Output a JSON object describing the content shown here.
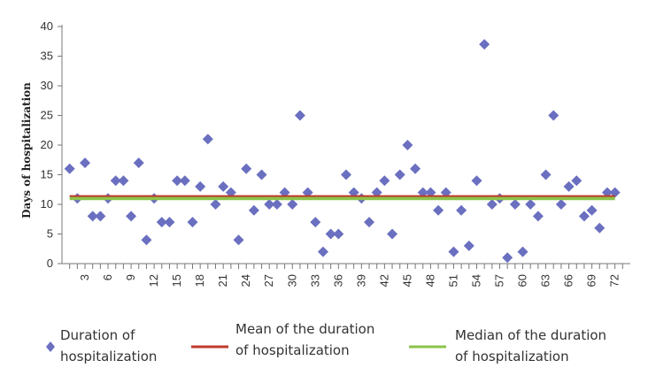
{
  "chart_data": {
    "type": "scatter",
    "title": "",
    "xlabel": "",
    "ylabel": "Days of hospitalization",
    "xlim": [
      0,
      74
    ],
    "ylim": [
      0,
      40
    ],
    "yticks": [
      0,
      5,
      10,
      15,
      20,
      25,
      30,
      35,
      40
    ],
    "xtick_labels": [
      3,
      6,
      9,
      12,
      15,
      18,
      21,
      24,
      27,
      30,
      33,
      36,
      39,
      42,
      45,
      48,
      51,
      54,
      57,
      60,
      63,
      66,
      69,
      72
    ],
    "grid": false,
    "legend_position": "bottom",
    "series": [
      {
        "name": "Duration of hospitalization",
        "marker": "diamond",
        "color": "#6a6fc0",
        "x": [
          1,
          2,
          3,
          4,
          5,
          6,
          7,
          8,
          9,
          10,
          11,
          12,
          13,
          14,
          15,
          16,
          17,
          18,
          19,
          20,
          21,
          22,
          23,
          24,
          25,
          26,
          27,
          28,
          29,
          30,
          31,
          32,
          33,
          34,
          35,
          36,
          37,
          38,
          39,
          40,
          41,
          42,
          43,
          44,
          45,
          46,
          47,
          48,
          49,
          50,
          51,
          52,
          53,
          54,
          55,
          56,
          57,
          58,
          59,
          60,
          61,
          62,
          63,
          64,
          65,
          66,
          67,
          68,
          69,
          70,
          71,
          72
        ],
        "y": [
          16,
          11,
          17,
          8,
          8,
          11,
          14,
          14,
          8,
          17,
          4,
          11,
          7,
          7,
          14,
          14,
          7,
          13,
          21,
          10,
          13,
          12,
          4,
          16,
          9,
          15,
          10,
          10,
          12,
          10,
          25,
          12,
          7,
          2,
          5,
          5,
          15,
          12,
          11,
          7,
          12,
          14,
          5,
          15,
          20,
          16,
          12,
          12,
          9,
          12,
          2,
          9,
          3,
          14,
          37,
          10,
          11,
          1,
          10,
          2,
          10,
          8,
          15,
          25,
          10,
          13,
          14,
          8,
          9,
          6,
          12,
          12
        ]
      },
      {
        "name": "Mean of the duration of hospitalization",
        "type": "line",
        "color": "#c0392b",
        "value": 11.4
      },
      {
        "name": "Median of the duration of hospitalization",
        "type": "line",
        "color": "#8bc34a",
        "value": 11
      }
    ]
  },
  "legend": {
    "items": [
      {
        "line1": "Duration of",
        "line2": "hospitalization"
      },
      {
        "line1": "Mean of the duration",
        "line2": "of hospitalization"
      },
      {
        "line1": "Median of the duration",
        "line2": "of hospitalization"
      }
    ]
  }
}
